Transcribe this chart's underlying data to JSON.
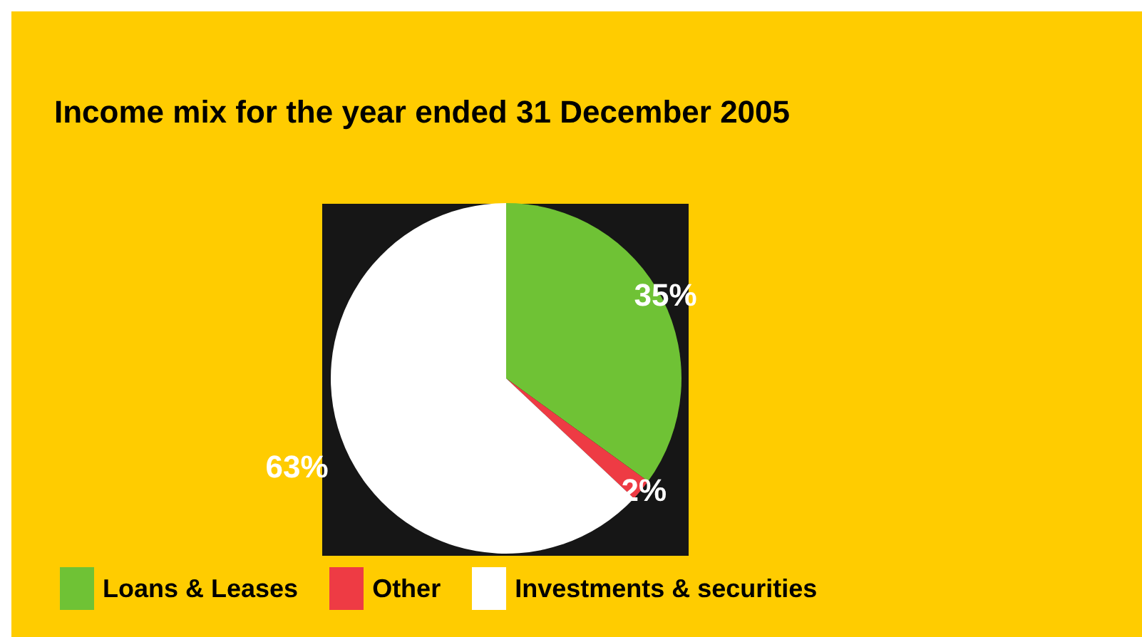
{
  "chart_data": {
    "type": "pie",
    "title": "Income mix for the year ended 31 December 2005",
    "categories": [
      "Loans & Leases",
      "Other",
      "Investments & securities"
    ],
    "values": [
      35,
      2,
      63
    ],
    "colors": [
      "#6fc235",
      "#ee3b44",
      "#ffffff"
    ],
    "value_labels": [
      "35%",
      "2%",
      "63%"
    ],
    "legend": "bottom left"
  }
}
